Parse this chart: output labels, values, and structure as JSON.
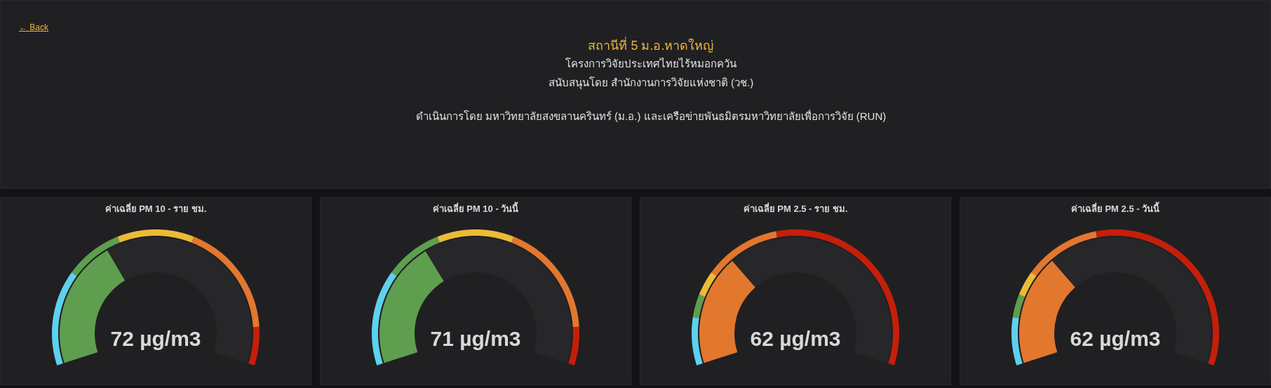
{
  "chart_data": [
    {
      "type": "other",
      "title": "สถานีที่ 5 ม.อ.หาดใหญ่",
      "subtitle": "โครงการวิจัยประเทศไทยไร้หมอกควัน",
      "annotations": [
        "← Back",
        "สนับสนุนโดย สำนักงานการวิจัยแห่งชาติ (วช.)",
        "ดำเนินการโดย มหาวิทยาลัยสงขลานครินทร์ (ม.อ.) และเครือข่ายพันธมิตรมหาวิทยาลัยเพื่อการวิจัย (RUN)"
      ]
    },
    {
      "type": "donut",
      "title": "ค่าเฉลี่ย PM 10 - ราย ชม.",
      "series": [
        {
          "values": [
            25,
            15,
            20,
            30,
            10
          ],
          "colors": [
            "#5dd1ee",
            "#5f9e4f",
            "#ecbb36",
            "#e2772e",
            "#c41f0b"
          ]
        },
        {
          "values": [
            36,
            64
          ],
          "colors": [
            "#5f9e4f",
            "#272729"
          ]
        }
      ],
      "annotations": [
        "72 µg/m3"
      ]
    },
    {
      "type": "donut",
      "title": "ค่าเฉลี่ย PM 10 - วันนี้",
      "series": [
        {
          "values": [
            25,
            15,
            20,
            30,
            10
          ],
          "colors": [
            "#5dd1ee",
            "#5f9e4f",
            "#ecbb36",
            "#e2772e",
            "#c41f0b"
          ]
        },
        {
          "values": [
            35.5,
            64.5
          ],
          "colors": [
            "#5f9e4f",
            "#272729"
          ]
        }
      ],
      "annotations": [
        "71 µg/m3"
      ]
    },
    {
      "type": "donut",
      "title": "ค่าเฉลี่ย PM 2.5 - ราย ชม.",
      "series": [
        {
          "values": [
            12.5,
            6,
            6.5,
            20,
            55
          ],
          "colors": [
            "#5dd1ee",
            "#5f9e4f",
            "#ecbb36",
            "#e2772e",
            "#c41f0b"
          ]
        },
        {
          "values": [
            31,
            69
          ],
          "colors": [
            "#e2772e",
            "#272729"
          ]
        }
      ],
      "annotations": [
        "62 µg/m3"
      ]
    },
    {
      "type": "donut",
      "title": "ค่าเฉลี่ย PM 2.5 - วันนี้",
      "series": [
        {
          "values": [
            12.5,
            6,
            6.5,
            20,
            55
          ],
          "colors": [
            "#5dd1ee",
            "#5f9e4f",
            "#ecbb36",
            "#e2772e",
            "#c41f0b"
          ]
        },
        {
          "values": [
            31,
            69
          ],
          "colors": [
            "#e2772e",
            "#272729"
          ]
        }
      ],
      "annotations": [
        "62 µg/m3"
      ]
    }
  ]
}
